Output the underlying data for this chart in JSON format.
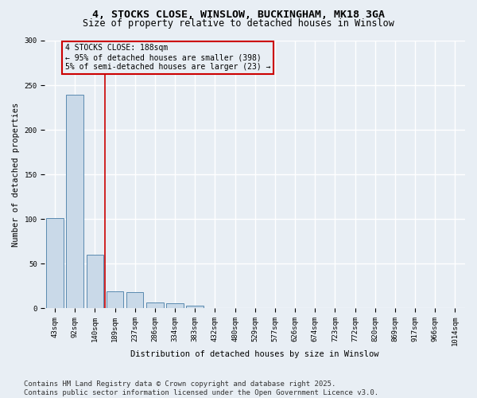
{
  "title": "4, STOCKS CLOSE, WINSLOW, BUCKINGHAM, MK18 3GA",
  "subtitle": "Size of property relative to detached houses in Winslow",
  "xlabel": "Distribution of detached houses by size in Winslow",
  "ylabel": "Number of detached properties",
  "categories": [
    "43sqm",
    "92sqm",
    "140sqm",
    "189sqm",
    "237sqm",
    "286sqm",
    "334sqm",
    "383sqm",
    "432sqm",
    "480sqm",
    "529sqm",
    "577sqm",
    "626sqm",
    "674sqm",
    "723sqm",
    "772sqm",
    "820sqm",
    "869sqm",
    "917sqm",
    "966sqm",
    "1014sqm"
  ],
  "values": [
    101,
    239,
    60,
    19,
    18,
    6,
    5,
    3,
    0,
    0,
    0,
    0,
    0,
    0,
    0,
    0,
    0,
    0,
    0,
    0,
    0
  ],
  "bar_color": "#c9d9e8",
  "bar_edge_color": "#5a8ab0",
  "vline_x": 2.5,
  "vline_color": "#cc0000",
  "annotation_text": "4 STOCKS CLOSE: 188sqm\n← 95% of detached houses are smaller (398)\n5% of semi-detached houses are larger (23) →",
  "annotation_box_color": "#cc0000",
  "ylim": [
    0,
    300
  ],
  "yticks": [
    0,
    50,
    100,
    150,
    200,
    250,
    300
  ],
  "bg_color": "#e8eef4",
  "grid_color": "#ffffff",
  "footnote": "Contains HM Land Registry data © Crown copyright and database right 2025.\nContains public sector information licensed under the Open Government Licence v3.0.",
  "title_fontsize": 9.5,
  "subtitle_fontsize": 8.5,
  "axis_label_fontsize": 7.5,
  "tick_fontsize": 6.5,
  "annotation_fontsize": 7,
  "footnote_fontsize": 6.5
}
